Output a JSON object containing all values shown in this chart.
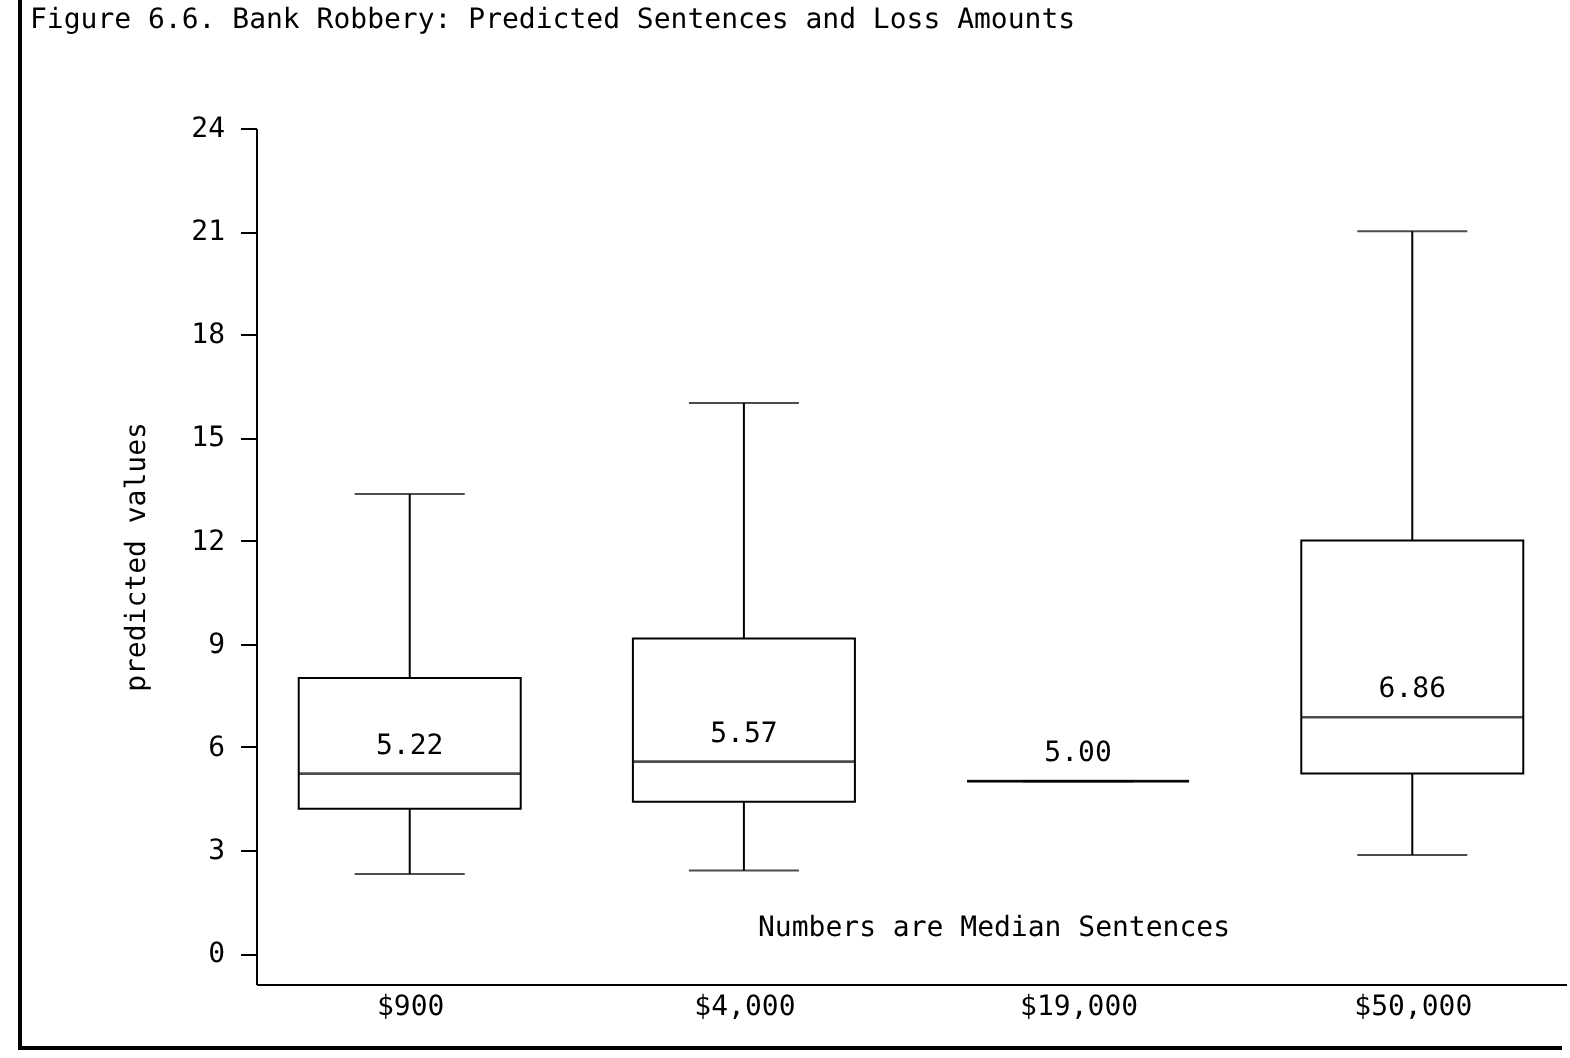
{
  "chart_data": {
    "type": "box",
    "title": "Figure 6.6. Bank Robbery: Predicted Sentences and Loss Amounts",
    "ylabel": "predicted values",
    "categories": [
      "$900",
      "$4,000",
      "$19,000",
      "$50,000"
    ],
    "boxes": [
      {
        "low": 2.3,
        "q1": 4.2,
        "median": 5.22,
        "q3": 8.0,
        "high": 13.35
      },
      {
        "low": 2.4,
        "q1": 4.4,
        "median": 5.57,
        "q3": 9.15,
        "high": 16.0
      },
      {
        "low": 5.0,
        "q1": 5.0,
        "median": 5.0,
        "q3": 5.0,
        "high": 5.0
      },
      {
        "low": 2.85,
        "q1": 5.22,
        "median": 6.86,
        "q3": 12.0,
        "high": 21.0
      }
    ],
    "value_labels": [
      "5.22",
      "5.57",
      "5.00",
      "6.86"
    ],
    "annotations": [
      "Numbers are Median Sentences"
    ],
    "ylim": [
      -0.9,
      24
    ],
    "yticks": [
      0,
      3,
      6,
      9,
      12,
      15,
      18,
      21,
      24
    ],
    "grid": false
  }
}
